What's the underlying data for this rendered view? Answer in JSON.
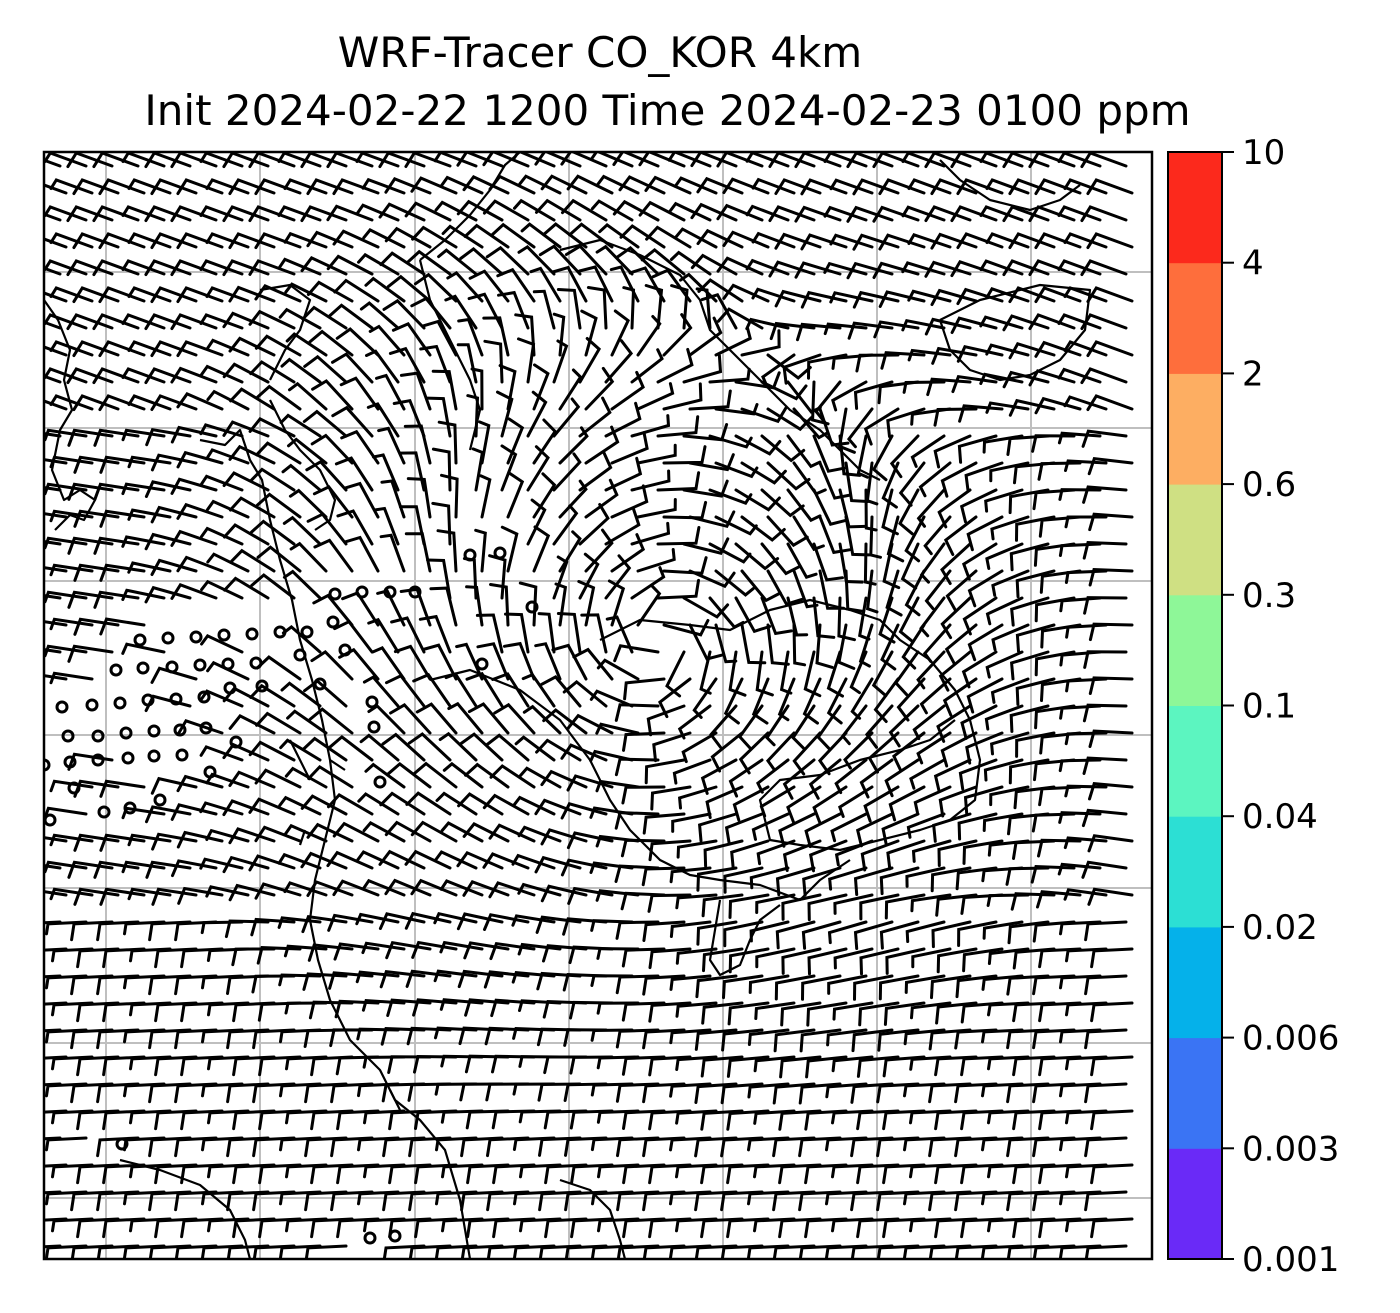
{
  "title": {
    "line1": "WRF-Tracer CO_KOR 4km",
    "line2": "Init 2024-02-22 1200 Time 2024-02-23 0100 ppm"
  },
  "map": {
    "grid": "on",
    "grid_color": "#bfbfbf",
    "coastline_color": "#000000",
    "symbol": "wind barbs (half and full barbs, calm circles)",
    "field_colored": "none visible"
  },
  "colorbar": {
    "position": "right",
    "ticks": [
      "0.001",
      "0.003",
      "0.006",
      "0.02",
      "0.04",
      "0.1",
      "0.3",
      "0.6",
      "2",
      "4",
      "10"
    ],
    "colors": [
      "#6a2af7",
      "#3a74f4",
      "#05b1ea",
      "#2cdfd4",
      "#5cf5c0",
      "#8ef798",
      "#cfe083",
      "#fdae62",
      "#fe6e3c",
      "#fc291c"
    ]
  }
}
